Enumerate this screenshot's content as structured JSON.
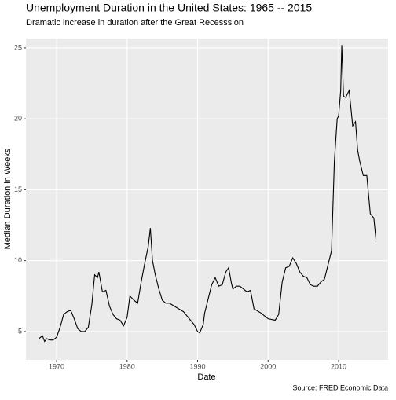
{
  "chart_data": {
    "type": "line",
    "title": "Unemployment Duration in the United States: 1965 -- 2015",
    "subtitle": "Dramatic increase in duration after the Great Recesssion",
    "x_label": "Date",
    "y_label": "Median Duration in Weeks",
    "caption": "Source: FRED Economic Data",
    "x": [
      1967.5,
      1968,
      1968.3,
      1968.6,
      1969,
      1969.5,
      1970,
      1970.5,
      1971,
      1971.5,
      1972,
      1972.5,
      1973,
      1973.5,
      1974,
      1974.5,
      1975,
      1975.4,
      1975.8,
      1976,
      1976.5,
      1977,
      1977.5,
      1978,
      1978.5,
      1979,
      1979.5,
      1980,
      1980.4,
      1980.8,
      1981,
      1981.5,
      1982,
      1982.5,
      1983,
      1983.3,
      1983.6,
      1984,
      1984.5,
      1985,
      1985.5,
      1986,
      1987,
      1988,
      1989,
      1989.5,
      1990,
      1990.3,
      1990.8,
      1991,
      1991.5,
      1992,
      1992.5,
      1993,
      1993.5,
      1994,
      1994.4,
      1994.8,
      1995,
      1995.5,
      1996,
      1997,
      1997.5,
      1998,
      1999,
      2000,
      2001,
      2001.5,
      2002,
      2002.5,
      2003,
      2003.5,
      2004,
      2004.5,
      2005,
      2005.5,
      2006,
      2006.5,
      2007,
      2007.5,
      2008,
      2008.5,
      2009,
      2009.4,
      2009.8,
      2010,
      2010.3,
      2010.45,
      2010.7,
      2011,
      2011.5,
      2012,
      2012.4,
      2012.7,
      2013,
      2013.5,
      2014,
      2014.5,
      2015,
      2015.3
    ],
    "series": [
      {
        "name": "Median Duration",
        "color": "#000000",
        "values": [
          4.5,
          4.7,
          4.3,
          4.5,
          4.4,
          4.4,
          4.6,
          5.3,
          6.2,
          6.4,
          6.5,
          5.9,
          5.2,
          5.0,
          5.0,
          5.3,
          6.9,
          9.0,
          8.8,
          9.2,
          7.8,
          7.9,
          6.8,
          6.2,
          5.9,
          5.8,
          5.4,
          6.0,
          7.5,
          7.3,
          7.2,
          7.0,
          8.5,
          9.8,
          11.0,
          12.3,
          10.0,
          9.0,
          8.0,
          7.2,
          7.0,
          7.0,
          6.7,
          6.4,
          5.8,
          5.5,
          5.0,
          4.9,
          5.5,
          6.3,
          7.3,
          8.3,
          8.8,
          8.2,
          8.3,
          9.2,
          9.5,
          8.4,
          8.0,
          8.2,
          8.2,
          7.8,
          7.9,
          6.6,
          6.3,
          5.9,
          5.8,
          6.2,
          8.5,
          9.5,
          9.6,
          10.2,
          9.8,
          9.2,
          8.9,
          8.8,
          8.3,
          8.2,
          8.2,
          8.5,
          8.7,
          9.7,
          10.7,
          17.0,
          20.0,
          20.2,
          22.0,
          25.2,
          21.6,
          21.5,
          22.0,
          19.5,
          19.8,
          17.8,
          17.0,
          16.0,
          16.0,
          13.3,
          13.0,
          11.5
        ]
      }
    ],
    "xlim": [
      1965.65,
      2017.02
    ],
    "ylim": [
      3.0,
      25.66
    ],
    "xticks": [
      1970,
      1980,
      1990,
      2000,
      2010
    ],
    "yticks": [
      5,
      10,
      15,
      20,
      25
    ],
    "grid": true
  }
}
